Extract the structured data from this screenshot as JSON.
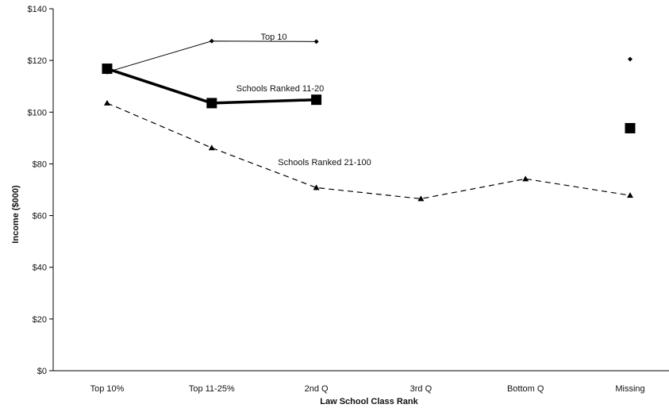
{
  "chart_data": {
    "type": "line",
    "title": "",
    "xlabel": "Law School Class Rank",
    "ylabel": "Income ($000)",
    "categories": [
      "Top 10%",
      "Top 11-25%",
      "2nd Q",
      "3rd Q",
      "Bottom Q",
      "Missing"
    ],
    "ylim": [
      0,
      140
    ],
    "yticks": [
      0,
      20,
      40,
      60,
      80,
      100,
      120,
      140
    ],
    "ytick_labels": [
      "$0",
      "$20",
      "$40",
      "$60",
      "$80",
      "$100",
      "$120",
      "$140"
    ],
    "grid": false,
    "legend": "none (series labelled inline)",
    "series": [
      {
        "name": "Top 10",
        "values": [
          115.5,
          127.5,
          127.3,
          null,
          null,
          120.5
        ],
        "style": "thin solid line",
        "marker": "diamond",
        "color": "#000000"
      },
      {
        "name": "Schools Ranked 11-20",
        "values": [
          116.8,
          103.5,
          104.8,
          null,
          null,
          93.8
        ],
        "style": "thick solid line",
        "marker": "square",
        "color": "#000000"
      },
      {
        "name": "Schools Ranked 21-100",
        "values": [
          103.5,
          86.2,
          70.8,
          66.5,
          74.2,
          67.8
        ],
        "style": "dashed line",
        "marker": "triangle",
        "color": "#000000"
      }
    ]
  }
}
